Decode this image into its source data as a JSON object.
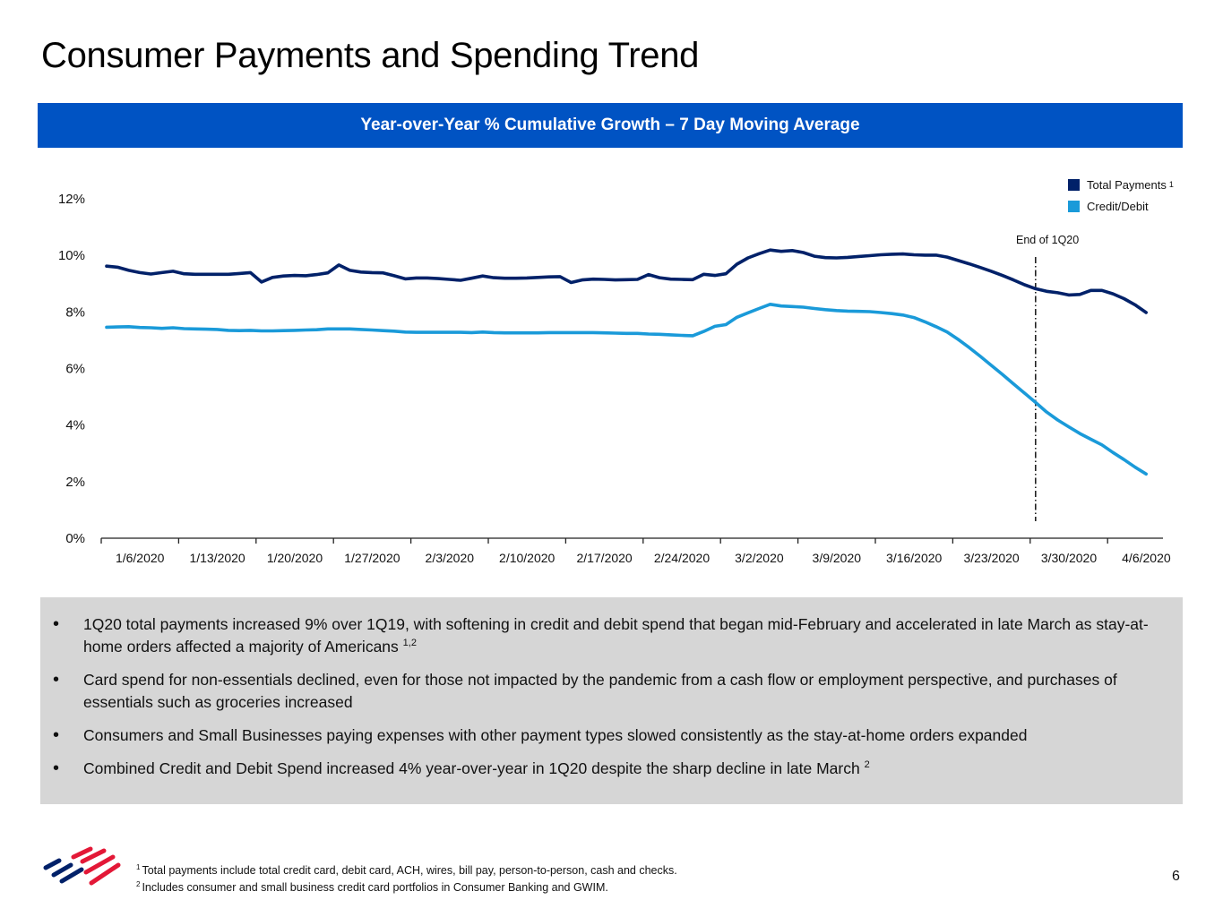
{
  "page": {
    "title": "Consumer Payments and Spending Trend",
    "page_number": "6"
  },
  "chart_banner": "Year-over-Year % Cumulative Growth – 7 Day Moving Average",
  "legend": {
    "items": [
      {
        "label": "Total Payments",
        "sup": "1",
        "color": "#012169"
      },
      {
        "label": "Credit/Debit",
        "sup": "",
        "color": "#1a9ad9"
      }
    ]
  },
  "annotation": {
    "label": "End of 1Q20",
    "x_index": 84
  },
  "bullets": [
    {
      "text": "1Q20 total payments increased 9% over 1Q19, with softening in credit and debit spend that began mid-February and accelerated in late March as stay-at-home orders affected a majority of Americans",
      "sup": "1,2"
    },
    {
      "text": "Card spend for non-essentials declined, even for those not impacted by the pandemic from a cash flow or employment perspective, and purchases of essentials such as groceries increased",
      "sup": ""
    },
    {
      "text": "Consumers and Small Businesses paying expenses with other payment types slowed consistently as the stay-at-home orders expanded",
      "sup": ""
    },
    {
      "text": "Combined Credit and Debit Spend increased 4% year-over-year in 1Q20 despite the sharp decline in late March",
      "sup": "2"
    }
  ],
  "footnotes": [
    {
      "num": "1",
      "text": "Total payments include total credit card, debit card, ACH, wires, bill pay, person-to-person, cash and checks."
    },
    {
      "num": "2",
      "text": "Includes consumer and small business credit card portfolios in Consumer Banking and GWIM."
    }
  ],
  "chart_data": {
    "type": "line",
    "title": "Year-over-Year % Cumulative Growth – 7 Day Moving Average",
    "xlabel": "",
    "ylabel": "",
    "ylim": [
      0,
      12
    ],
    "yticks": [
      0,
      2,
      4,
      6,
      8,
      10,
      12
    ],
    "ytick_labels": [
      "0%",
      "2%",
      "4%",
      "6%",
      "8%",
      "10%",
      "12%"
    ],
    "x_tick_labels": [
      "1/6/2020",
      "1/13/2020",
      "1/20/2020",
      "1/27/2020",
      "2/3/2020",
      "2/10/2020",
      "2/17/2020",
      "2/24/2020",
      "3/2/2020",
      "3/9/2020",
      "3/16/2020",
      "3/23/2020",
      "3/30/2020",
      "4/6/2020"
    ],
    "x_start": "1/6/2020",
    "x_end": "4/12/2020",
    "grid": false,
    "legend_position": "top-right",
    "series": [
      {
        "name": "Total Payments",
        "color": "#012169",
        "values": [
          9.62,
          9.58,
          9.47,
          9.39,
          9.34,
          9.39,
          9.44,
          9.35,
          9.33,
          9.33,
          9.33,
          9.33,
          9.36,
          9.39,
          9.06,
          9.22,
          9.27,
          9.29,
          9.28,
          9.32,
          9.38,
          9.66,
          9.47,
          9.41,
          9.39,
          9.38,
          9.28,
          9.17,
          9.2,
          9.2,
          9.18,
          9.15,
          9.12,
          9.19,
          9.27,
          9.21,
          9.19,
          9.19,
          9.2,
          9.22,
          9.24,
          9.25,
          9.04,
          9.13,
          9.16,
          9.15,
          9.13,
          9.14,
          9.15,
          9.32,
          9.21,
          9.16,
          9.15,
          9.14,
          9.33,
          9.29,
          9.35,
          9.69,
          9.91,
          10.06,
          10.19,
          10.14,
          10.17,
          10.1,
          9.97,
          9.92,
          9.91,
          9.93,
          9.96,
          9.99,
          10.02,
          10.04,
          10.05,
          10.02,
          10.01,
          10.01,
          9.94,
          9.82,
          9.7,
          9.57,
          9.44,
          9.29,
          9.13,
          8.96,
          8.82,
          8.73,
          8.68,
          8.6,
          8.62,
          8.76,
          8.76,
          8.64,
          8.47,
          8.25,
          7.98
        ]
      },
      {
        "name": "Credit/Debit",
        "color": "#1a9ad9",
        "values": [
          7.46,
          7.47,
          7.48,
          7.45,
          7.44,
          7.42,
          7.44,
          7.41,
          7.4,
          7.39,
          7.38,
          7.35,
          7.34,
          7.35,
          7.33,
          7.33,
          7.34,
          7.35,
          7.36,
          7.37,
          7.4,
          7.4,
          7.4,
          7.38,
          7.36,
          7.34,
          7.32,
          7.29,
          7.28,
          7.28,
          7.28,
          7.28,
          7.28,
          7.27,
          7.29,
          7.27,
          7.26,
          7.26,
          7.26,
          7.26,
          7.27,
          7.27,
          7.27,
          7.27,
          7.27,
          7.26,
          7.25,
          7.24,
          7.24,
          7.22,
          7.21,
          7.19,
          7.17,
          7.16,
          7.31,
          7.49,
          7.55,
          7.81,
          7.97,
          8.12,
          8.27,
          8.21,
          8.19,
          8.17,
          8.12,
          8.08,
          8.05,
          8.03,
          8.02,
          8.01,
          7.98,
          7.94,
          7.89,
          7.8,
          7.65,
          7.48,
          7.29,
          7.03,
          6.74,
          6.43,
          6.11,
          5.79,
          5.46,
          5.13,
          4.8,
          4.46,
          4.18,
          3.94,
          3.7,
          3.5,
          3.3,
          3.03,
          2.78,
          2.51,
          2.27
        ]
      }
    ]
  }
}
